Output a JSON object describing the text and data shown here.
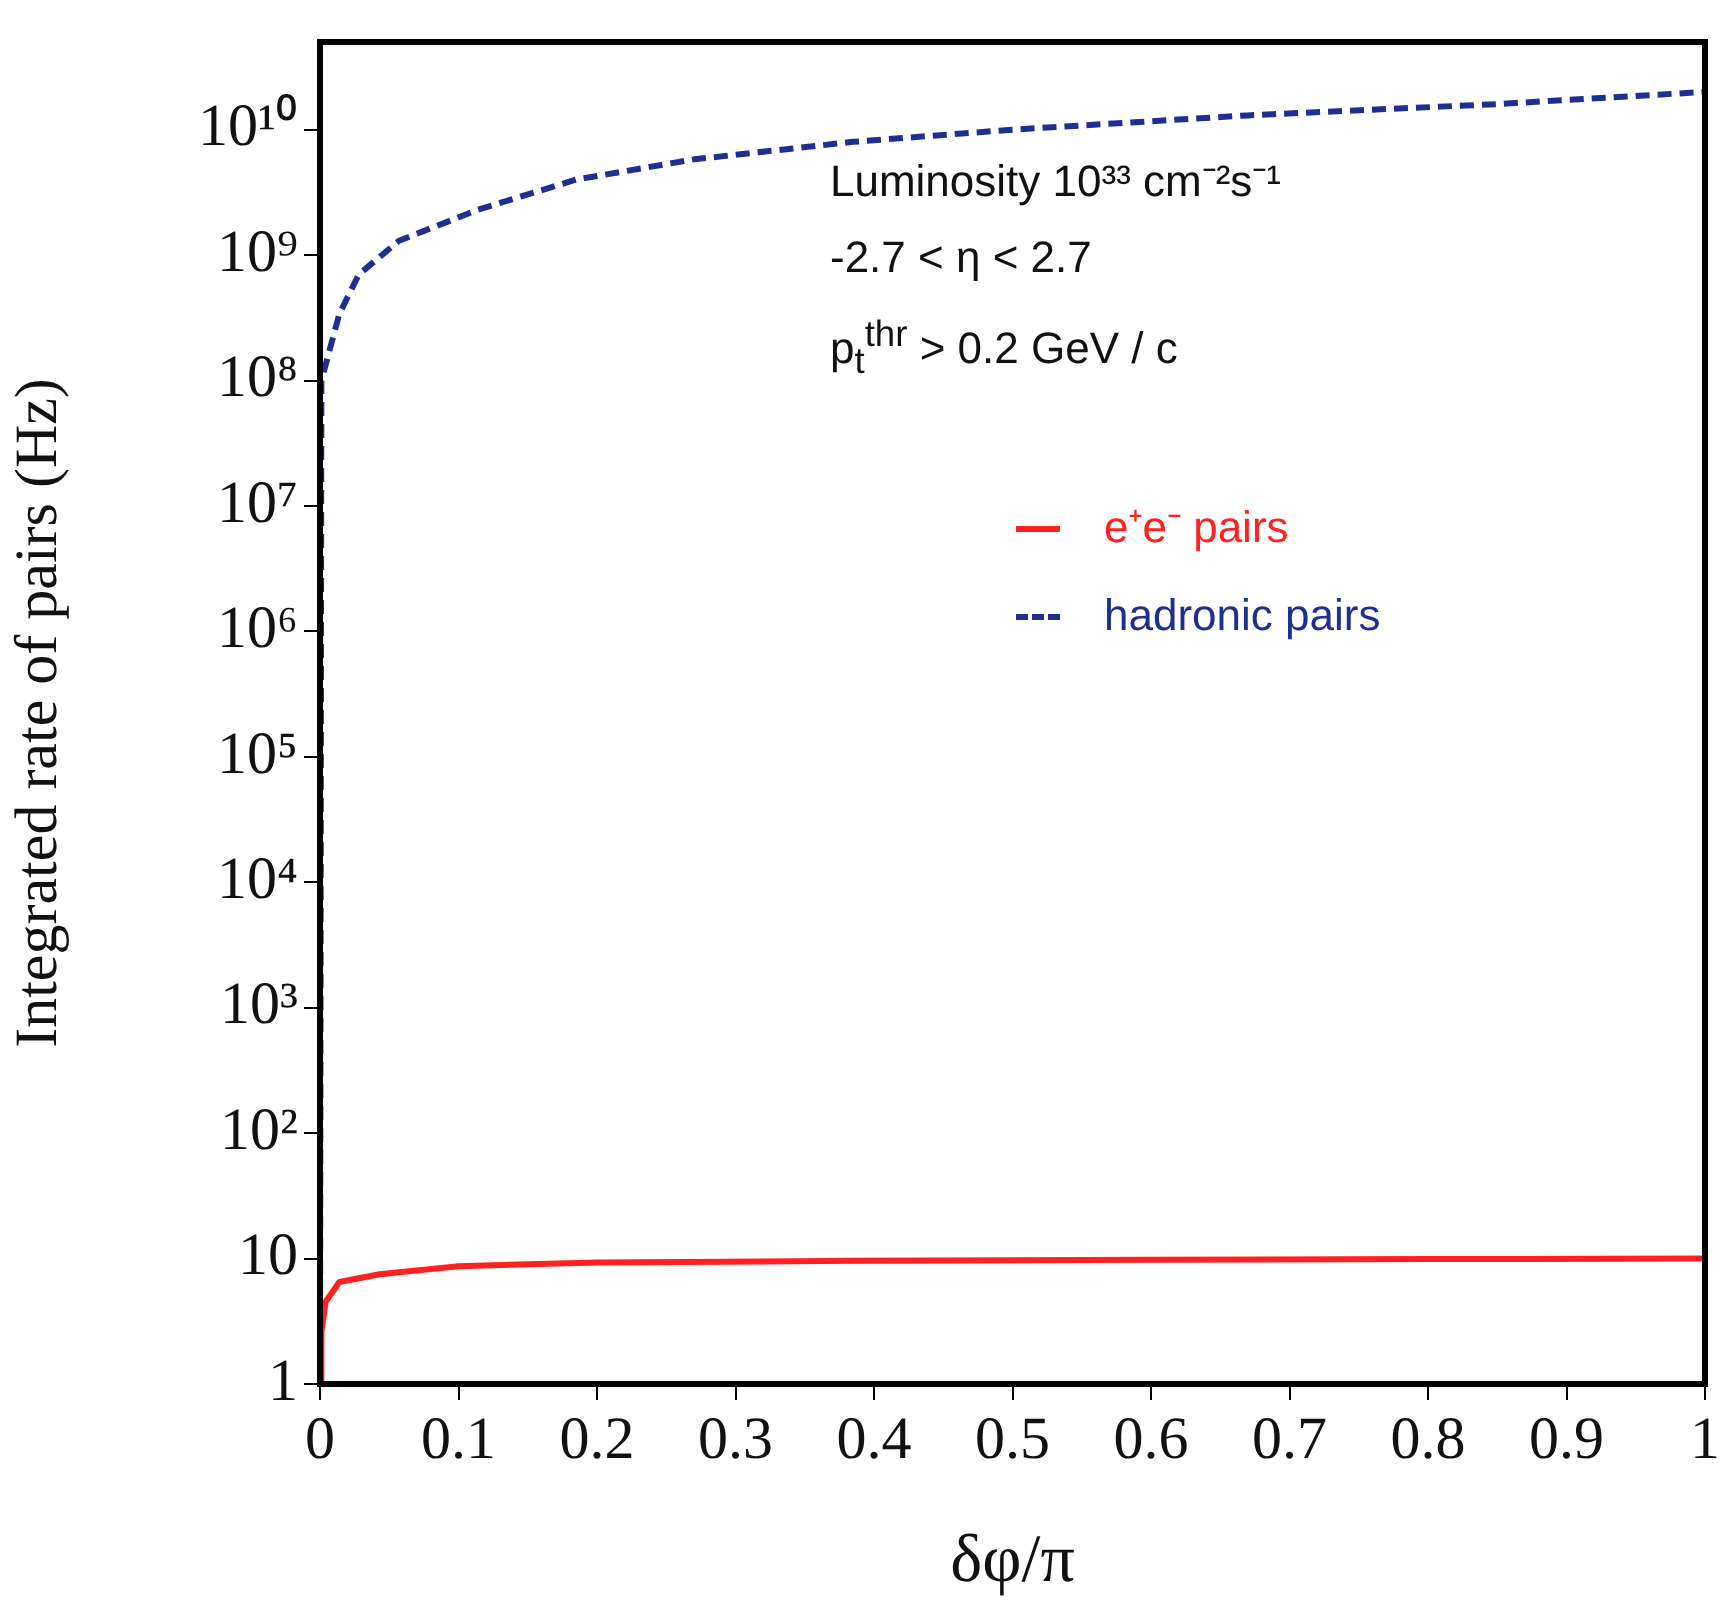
{
  "chart_data": {
    "type": "line",
    "xlabel": "δφ/π",
    "ylabel": "Integrated rate of pairs (Hz)",
    "xlim": [
      0,
      1
    ],
    "xticks": [
      0,
      0.1,
      0.2,
      0.3,
      0.4,
      0.5,
      0.6,
      0.7,
      0.8,
      0.9,
      1
    ],
    "ylim": [
      1,
      50000000000
    ],
    "log": true,
    "yticks": [
      {
        "value": 1,
        "label": "1"
      },
      {
        "value": 10,
        "label": "10"
      },
      {
        "value": 100,
        "label": "10²"
      },
      {
        "value": 1000,
        "label": "10³"
      },
      {
        "value": 10000,
        "label": "10⁴"
      },
      {
        "value": 100000,
        "label": "10⁵"
      },
      {
        "value": 1000000,
        "label": "10⁶"
      },
      {
        "value": 10000000,
        "label": "10⁷"
      },
      {
        "value": 100000000,
        "label": "10⁸"
      },
      {
        "value": 1000000000,
        "label": "10⁹"
      },
      {
        "value": 10000000000,
        "label": "10¹⁰"
      }
    ],
    "grid": false,
    "legend": "top right",
    "marker": "none",
    "annotations": [
      "Luminosity 10³³ cm⁻²s⁻¹",
      "-2.7 < η < 2.7",
      "p$_{t}$$^{thr}$ > 0.2 GeV / c"
    ],
    "series": [
      {
        "name": "e⁺e⁻ pairs",
        "color": "#ff2020",
        "line_style": "solid",
        "x": [
          0,
          0.001,
          0.004,
          0.014,
          0.043,
          0.1,
          0.2,
          0.385,
          0.6,
          0.8,
          1
        ],
        "values": [
          1,
          2.6,
          4.5,
          6.5,
          7.5,
          8.7,
          9.3,
          9.6,
          9.8,
          9.9,
          10
        ]
      },
      {
        "name": "hadronic pairs",
        "color": "#1f2f8f",
        "line_style": "dashed",
        "x": [
          0,
          0.001,
          0.014,
          0.028,
          0.057,
          0.114,
          0.185,
          0.27,
          0.385,
          0.5,
          0.67,
          0.85,
          1
        ],
        "values": [
          1,
          100000000,
          340000000,
          700000000,
          1300000000,
          2300000000,
          4000000000,
          5800000000,
          8000000000,
          10000000000,
          13000000000,
          16000000000,
          20000000000
        ]
      }
    ]
  }
}
